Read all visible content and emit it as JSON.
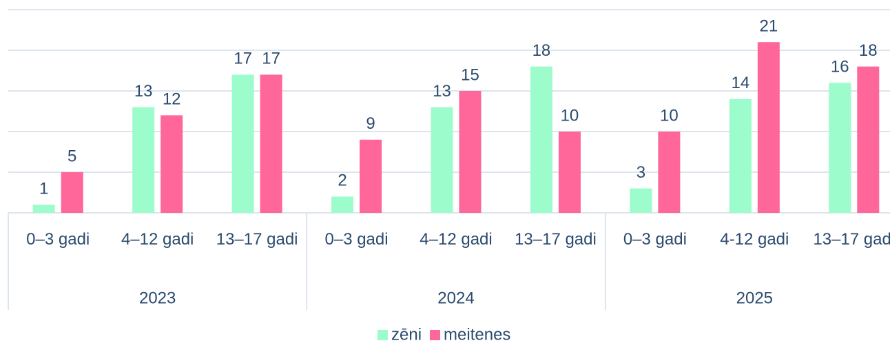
{
  "chart_data": {
    "type": "bar",
    "categories": [
      "0–3 gadi",
      "4–12 gadi",
      "13–17 gadi",
      "0–3 gadi",
      "4–12 gadi",
      "13–17 gadi",
      "0–3 gadi",
      "4-12 gadi",
      "13–17 gadi"
    ],
    "category_groups": [
      "2023",
      "2024",
      "2025"
    ],
    "series": [
      {
        "name": "zēni",
        "color": "#9dfccb",
        "values": [
          1,
          13,
          17,
          2,
          13,
          18,
          3,
          14,
          16
        ]
      },
      {
        "name": "meitenes",
        "color": "#ff6699",
        "values": [
          5,
          12,
          17,
          9,
          15,
          10,
          10,
          21,
          18
        ]
      }
    ],
    "ylim": [
      0,
      25
    ],
    "yticks": [
      0,
      5,
      10,
      15,
      20,
      25
    ],
    "grid": true,
    "legend": "bottom"
  }
}
